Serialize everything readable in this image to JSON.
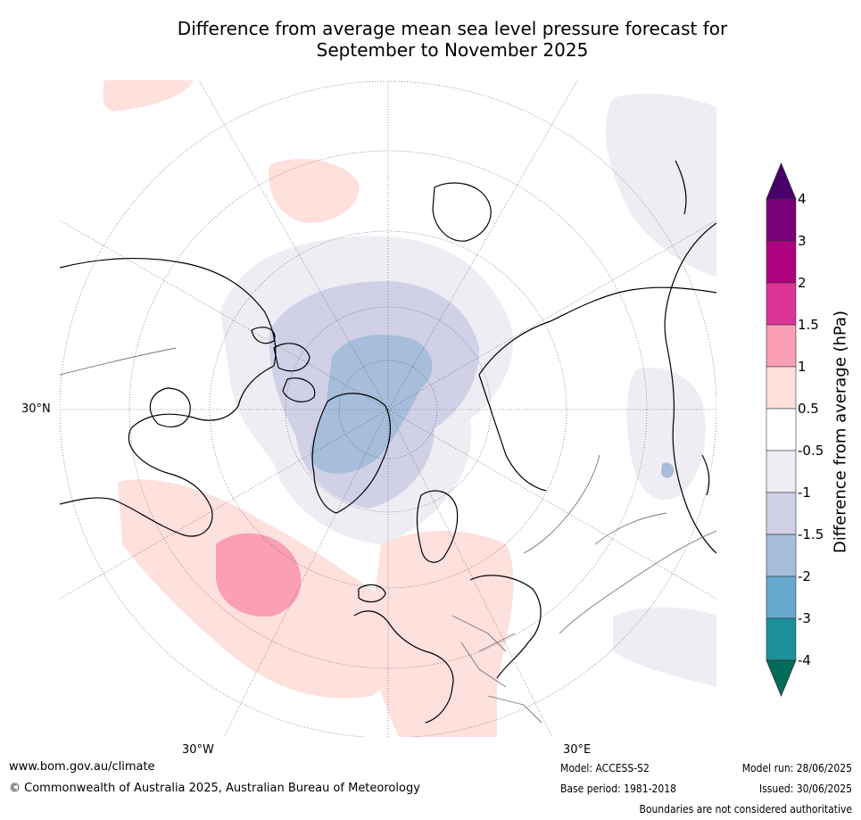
{
  "title": {
    "line1": "Difference from average mean sea level pressure forecast for",
    "line2": "September to November 2025"
  },
  "map": {
    "projection": "north-polar-stereographic",
    "graticule": true,
    "lon_labels": [
      "30°W",
      "30°E"
    ],
    "lat_labels": [
      "30°N"
    ],
    "regions": [
      {
        "name": "central-arctic-greenland",
        "category": "-2 to -1.5"
      },
      {
        "name": "arctic-surround",
        "category": "-1.5 to -1"
      },
      {
        "name": "outer-arctic-band",
        "category": "-1 to -0.5"
      },
      {
        "name": "north-atlantic",
        "category": "0.5 to 1"
      },
      {
        "name": "mid-atlantic-core",
        "category": "1 to 1.5"
      },
      {
        "name": "europe-mediterranean",
        "category": "0.5 to 1"
      },
      {
        "name": "north-pacific",
        "category": "0.5 to 1"
      },
      {
        "name": "east-asia",
        "category": "-1 to -0.5"
      },
      {
        "name": "east-asia-spot",
        "category": "-2 to -1.5"
      }
    ]
  },
  "colorbar": {
    "title": "Difference from average (hPa)",
    "tick_labels": [
      "4",
      "3",
      "2",
      "1.5",
      "1",
      "0.5",
      "-0.5",
      "-1",
      "-1.5",
      "-2",
      "-3",
      "-4"
    ],
    "bin_colors": [
      "#7a0177",
      "#ae017e",
      "#dd3497",
      "#fa9fb5",
      "#fee0dd",
      "#ffffff",
      "#f0ecf3",
      "#d0d1e6",
      "#a6bddb",
      "#67a9cf",
      "#1c9099"
    ],
    "extend_high_color": "#49006a",
    "extend_low_color": "#016c59"
  },
  "footer": {
    "url": "www.bom.gov.au/climate",
    "copyright": "© Commonwealth of Australia 2025, Australian Bureau of Meteorology",
    "model": "Model: ACCESS-S2",
    "base_period": "Base period: 1981-2018",
    "model_run": "Model run: 28/06/2025",
    "issued": "Issued: 30/06/2025",
    "disclaimer": "Boundaries are not considered authoritative"
  }
}
